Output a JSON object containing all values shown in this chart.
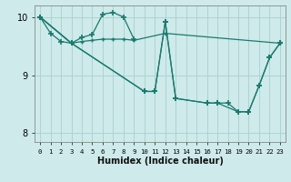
{
  "title": "",
  "xlabel": "Humidex (Indice chaleur)",
  "background_color": "#ceeaea",
  "line_color": "#1a7a6e",
  "grid_color": "#aacfcf",
  "xlim": [
    -0.5,
    23.5
  ],
  "ylim": [
    7.85,
    10.2
  ],
  "yticks": [
    8,
    9,
    10
  ],
  "xticks": [
    0,
    1,
    2,
    3,
    4,
    5,
    6,
    7,
    8,
    9,
    10,
    11,
    12,
    13,
    14,
    15,
    16,
    17,
    18,
    19,
    20,
    21,
    22,
    23
  ],
  "series": [
    {
      "x": [
        0,
        1,
        2,
        3,
        4,
        5,
        6,
        7,
        8,
        9
      ],
      "y": [
        10.0,
        9.72,
        9.58,
        9.55,
        9.65,
        9.7,
        10.05,
        10.08,
        10.0,
        9.62
      ]
    },
    {
      "x": [
        0,
        3,
        4,
        5,
        6,
        7,
        8,
        9,
        12,
        23
      ],
      "y": [
        10.0,
        9.55,
        9.58,
        9.6,
        9.62,
        9.62,
        9.62,
        9.6,
        9.72,
        9.55
      ]
    },
    {
      "x": [
        0,
        3,
        10,
        11,
        12,
        13,
        16,
        17,
        19,
        20,
        21,
        22,
        23
      ],
      "y": [
        10.0,
        9.55,
        8.72,
        8.72,
        9.92,
        8.6,
        8.52,
        8.52,
        8.37,
        8.37,
        8.82,
        9.3,
        9.55
      ]
    },
    {
      "x": [
        0,
        3,
        10,
        11,
        12,
        13,
        16,
        17,
        18,
        19,
        20,
        21,
        22,
        23
      ],
      "y": [
        10.0,
        9.55,
        8.72,
        8.72,
        9.92,
        8.6,
        8.52,
        8.52,
        8.52,
        8.37,
        8.37,
        8.82,
        9.3,
        9.55
      ]
    }
  ]
}
